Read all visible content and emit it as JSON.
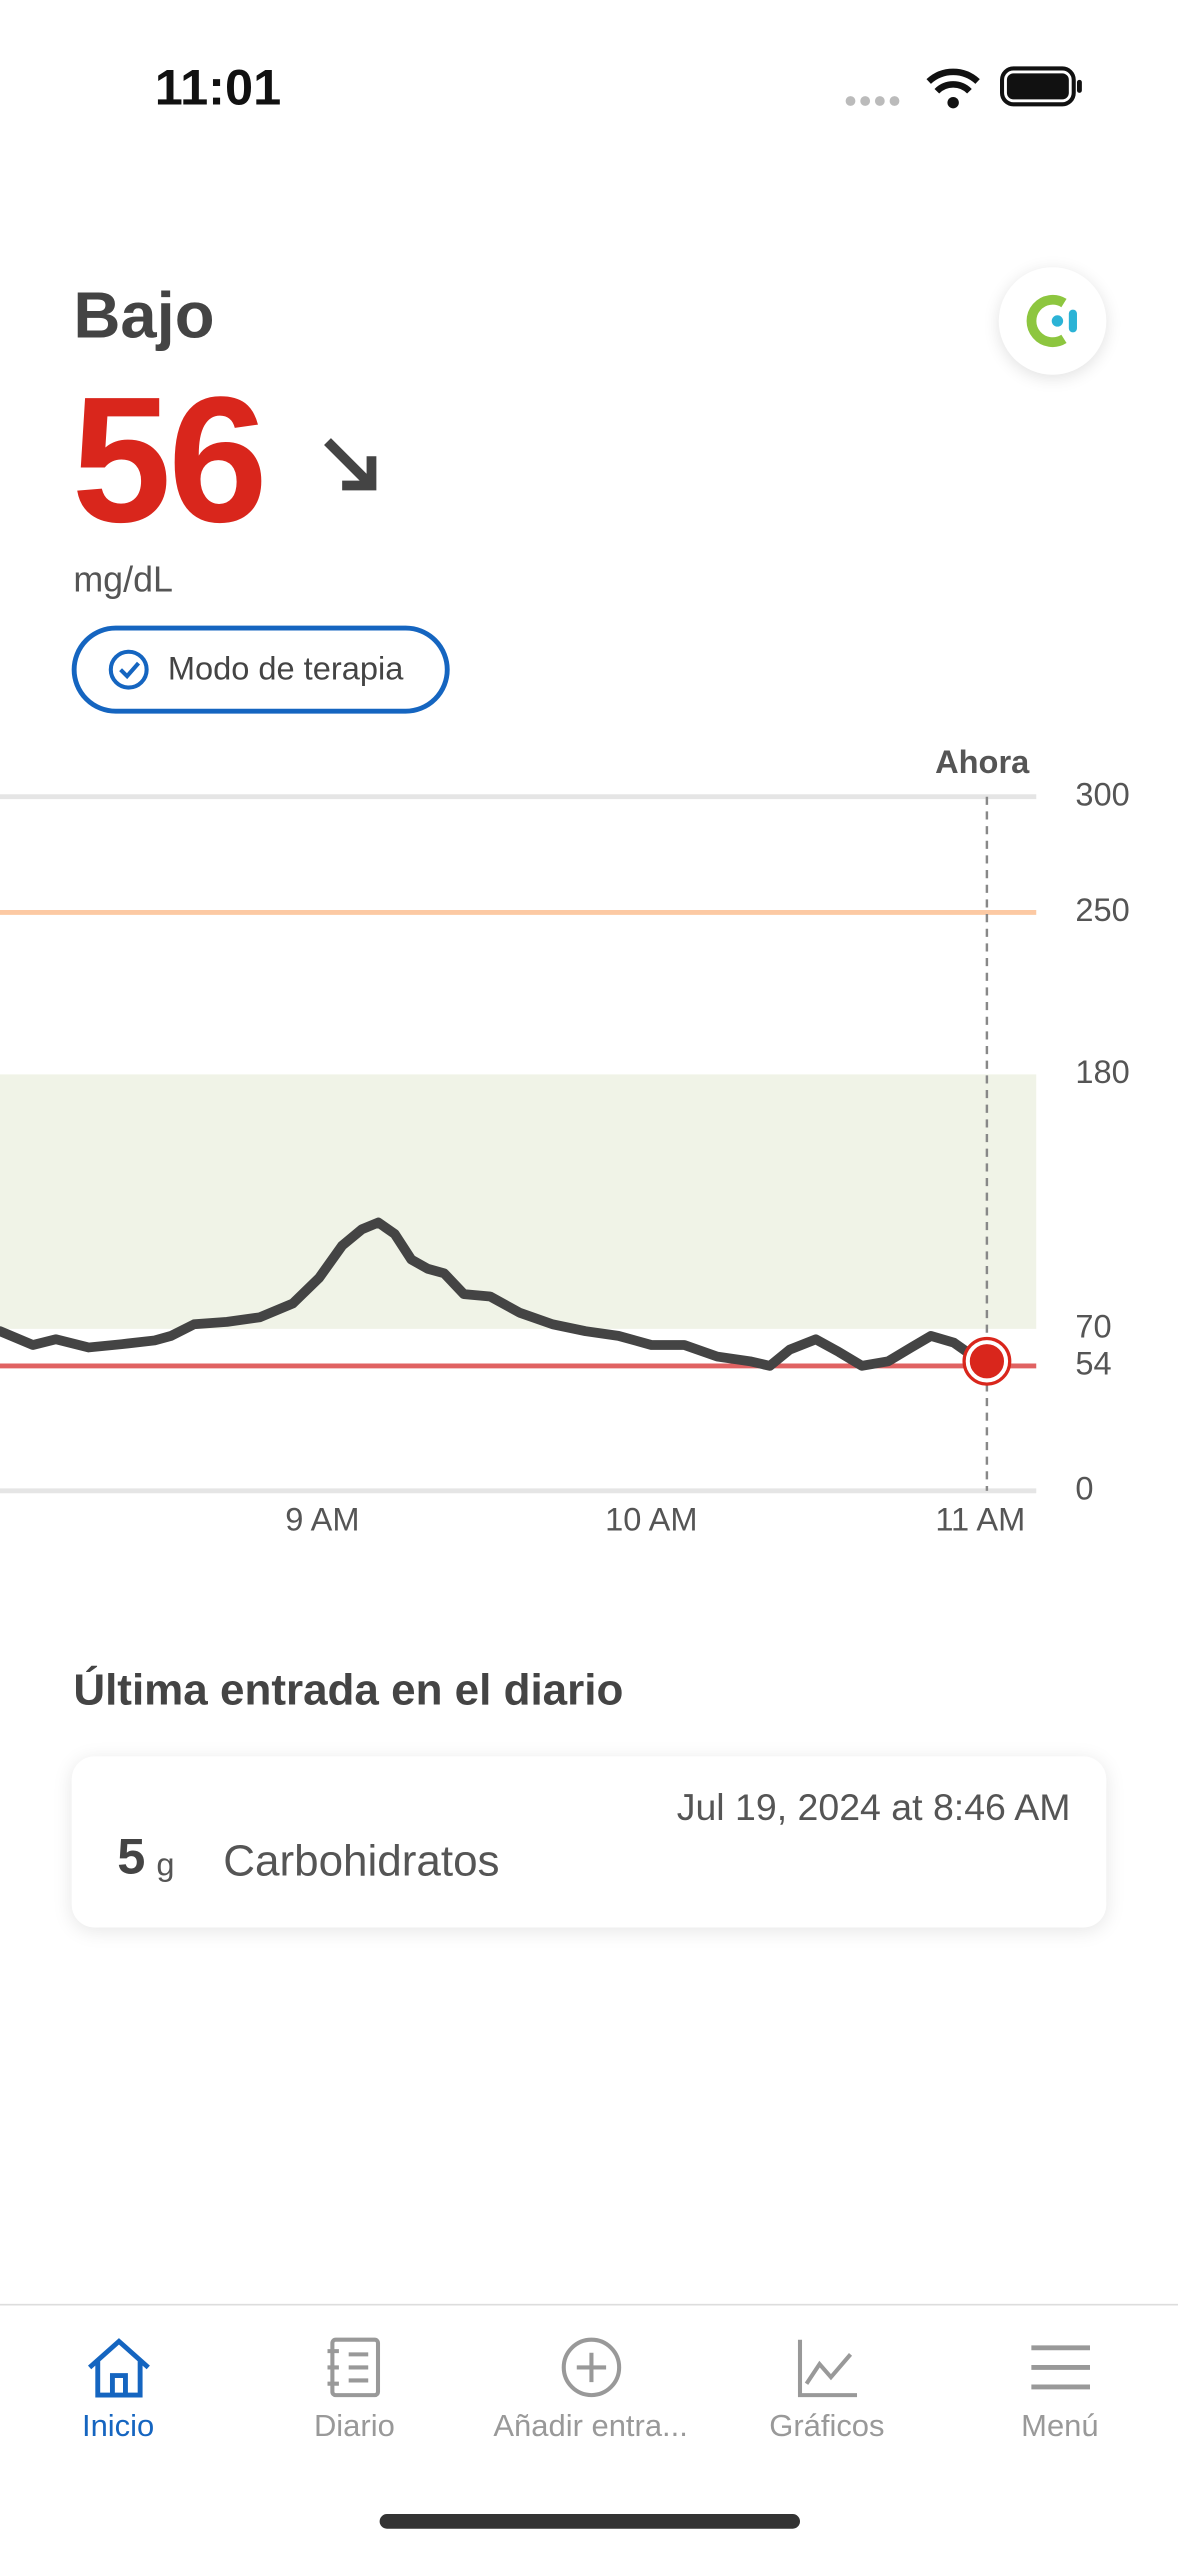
{
  "status_bar": {
    "time": "11:01"
  },
  "header": {
    "status": "Bajo",
    "value": 56,
    "unit": "mg/dL",
    "therapy_button": "Modo de terapia"
  },
  "chart_data": {
    "type": "line",
    "now_label": "Ahora",
    "x": [
      8.02,
      8.12,
      8.19,
      8.29,
      8.39,
      8.49,
      8.54,
      8.61,
      8.71,
      8.81,
      8.91,
      8.99,
      9.06,
      9.12,
      9.17,
      9.22,
      9.27,
      9.32,
      9.37,
      9.43,
      9.51,
      9.6,
      9.7,
      9.8,
      9.9,
      10.0,
      10.1,
      10.2,
      10.3,
      10.36,
      10.42,
      10.5,
      10.57,
      10.64,
      10.72,
      10.79,
      10.85,
      10.92,
      10.98,
      11.02
    ],
    "values": [
      69,
      63,
      65.5,
      62,
      63.4,
      65,
      67,
      72,
      73,
      75,
      81,
      92,
      106,
      113,
      116,
      111,
      100,
      96,
      94,
      85,
      84,
      77,
      72,
      69,
      67,
      63,
      63,
      58,
      56,
      54,
      61,
      65.5,
      60,
      54,
      56,
      62,
      67,
      64,
      58,
      56
    ],
    "color": "#444444",
    "marker_color": "#d9261c",
    "xlim": [
      8.02,
      11.17
    ],
    "xticks": [
      {
        "value": 9,
        "label": "9 AM"
      },
      {
        "value": 10,
        "label": "10 AM"
      },
      {
        "value": 11,
        "label": "11 AM"
      }
    ],
    "ylim": [
      0,
      300
    ],
    "yticks": [
      0,
      54,
      70,
      180,
      250,
      300
    ],
    "target_range": [
      70,
      180
    ],
    "target_color": "#f0f3e7",
    "high_line": 250,
    "high_color": "#fcc9a3",
    "low_line": 54,
    "low_color": "#e06262"
  },
  "journal": {
    "title": "Última entrada en el diario",
    "entry": {
      "amount": 5,
      "unit": "g",
      "type": "Carbohidratos",
      "timestamp": "Jul 19, 2024 at 8:46 AM"
    }
  },
  "nav": {
    "tabs": [
      "Inicio",
      "Diario",
      "Añadir entra...",
      "Gráficos",
      "Menú"
    ]
  }
}
